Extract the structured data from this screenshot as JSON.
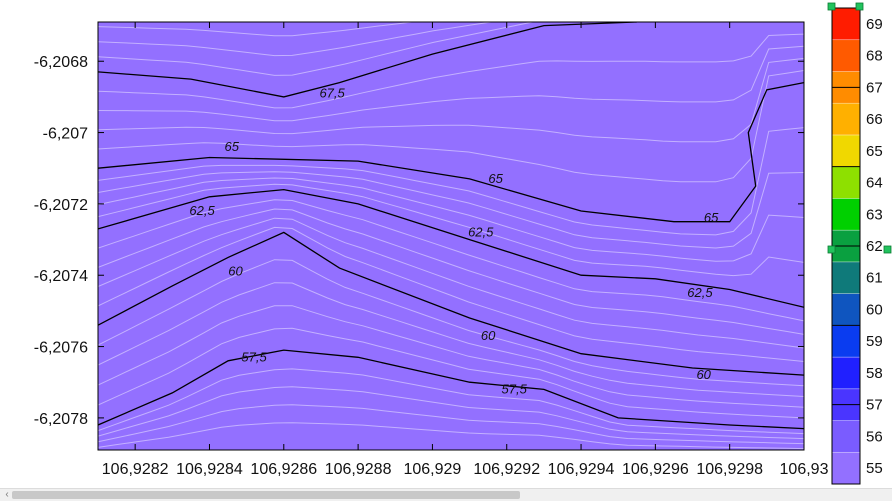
{
  "chart_data": {
    "type": "contour",
    "xlabel": "",
    "ylabel": "",
    "xlim": [
      106.9281,
      106.93
    ],
    "ylim": [
      -6.20789,
      -6.20669
    ],
    "x_ticks": [
      "106,9282",
      "106,9284",
      "106,9286",
      "106,9288",
      "106,929",
      "106,9292",
      "106,9294",
      "106,9296",
      "106,9298",
      "106,93"
    ],
    "x_tick_values": [
      106.9282,
      106.9284,
      106.9286,
      106.9288,
      106.929,
      106.9292,
      106.9294,
      106.9296,
      106.9298,
      106.93
    ],
    "y_ticks": [
      "-6,2068",
      "-6,207",
      "-6,2072",
      "-6,2074",
      "-6,2076",
      "-6,2078"
    ],
    "y_tick_values": [
      -6.2068,
      -6.207,
      -6.2072,
      -6.2074,
      -6.2076,
      -6.2078
    ],
    "colorbar": {
      "levels": [
        55,
        56,
        57,
        58,
        59,
        60,
        61,
        62,
        63,
        64,
        65,
        66,
        67,
        68,
        69
      ],
      "labels": [
        "55",
        "56",
        "57",
        "58",
        "59",
        "60",
        "61",
        "62",
        "63",
        "64",
        "65",
        "66",
        "67",
        "68",
        "69"
      ],
      "colors": [
        "#9370ff",
        "#7a5cff",
        "#4a35ff",
        "#2020ff",
        "#0a3cf0",
        "#0f55bf",
        "#0f7a7a",
        "#0aa040",
        "#00d000",
        "#8ee000",
        "#f0d800",
        "#ffb000",
        "#ff8c00",
        "#ff5a00",
        "#ff1c00"
      ]
    },
    "major_contours": [
      {
        "level": 67.5,
        "label": "67,5",
        "points": [
          [
            106.9281,
            -6.20683
          ],
          [
            106.92835,
            -6.20685
          ],
          [
            106.9286,
            -6.2069
          ],
          [
            106.92875,
            -6.20686
          ],
          [
            106.929,
            -6.20678
          ],
          [
            106.9293,
            -6.2067
          ],
          [
            106.92955,
            -6.20669
          ]
        ]
      },
      {
        "level": 65,
        "label": "65",
        "points": [
          [
            106.9281,
            -6.2071
          ],
          [
            106.9284,
            -6.20707
          ],
          [
            106.9288,
            -6.20708
          ],
          [
            106.9291,
            -6.20713
          ],
          [
            106.9294,
            -6.20722
          ],
          [
            106.92965,
            -6.20725
          ],
          [
            106.9298,
            -6.20725
          ],
          [
            106.92987,
            -6.20715
          ],
          [
            106.92985,
            -6.207
          ],
          [
            106.9299,
            -6.20688
          ],
          [
            106.93,
            -6.20686
          ]
        ]
      },
      {
        "level": 62.5,
        "label": "62,5",
        "points": [
          [
            106.9281,
            -6.20727
          ],
          [
            106.9284,
            -6.20718
          ],
          [
            106.9286,
            -6.20716
          ],
          [
            106.9288,
            -6.2072
          ],
          [
            106.9291,
            -6.2073
          ],
          [
            106.9294,
            -6.2074
          ],
          [
            106.9296,
            -6.20741
          ],
          [
            106.9298,
            -6.20744
          ],
          [
            106.93,
            -6.20749
          ]
        ]
      },
      {
        "level": 60,
        "label": "60",
        "points": [
          [
            106.9281,
            -6.20754
          ],
          [
            106.9283,
            -6.20743
          ],
          [
            106.92845,
            -6.20735
          ],
          [
            106.9286,
            -6.20728
          ],
          [
            106.92875,
            -6.20738
          ],
          [
            106.9291,
            -6.20752
          ],
          [
            106.9294,
            -6.20762
          ],
          [
            106.9297,
            -6.20766
          ],
          [
            106.93,
            -6.20768
          ]
        ]
      },
      {
        "level": 57.5,
        "label": "57,5",
        "points": [
          [
            106.9281,
            -6.20782
          ],
          [
            106.9283,
            -6.20773
          ],
          [
            106.92845,
            -6.20764
          ],
          [
            106.9286,
            -6.20761
          ],
          [
            106.9288,
            -6.20763
          ],
          [
            106.9291,
            -6.2077
          ],
          [
            106.9293,
            -6.20772
          ],
          [
            106.9295,
            -6.2078
          ],
          [
            106.9298,
            -6.20782
          ],
          [
            106.93,
            -6.20783
          ]
        ]
      }
    ],
    "contour_labels": [
      {
        "text": "67,5",
        "x": 106.92873,
        "y": -6.20689
      },
      {
        "text": "65",
        "x": 106.92846,
        "y": -6.20704
      },
      {
        "text": "65",
        "x": 106.92917,
        "y": -6.20713
      },
      {
        "text": "65",
        "x": 106.92975,
        "y": -6.20724
      },
      {
        "text": "62,5",
        "x": 106.92838,
        "y": -6.20722
      },
      {
        "text": "62,5",
        "x": 106.92913,
        "y": -6.20728
      },
      {
        "text": "62,5",
        "x": 106.92972,
        "y": -6.20745
      },
      {
        "text": "60",
        "x": 106.92847,
        "y": -6.20739
      },
      {
        "text": "60",
        "x": 106.92915,
        "y": -6.20757
      },
      {
        "text": "60",
        "x": 106.92973,
        "y": -6.20768
      },
      {
        "text": "57,5",
        "x": 106.92852,
        "y": -6.20763
      },
      {
        "text": "57,5",
        "x": 106.92922,
        "y": -6.20772
      }
    ]
  }
}
